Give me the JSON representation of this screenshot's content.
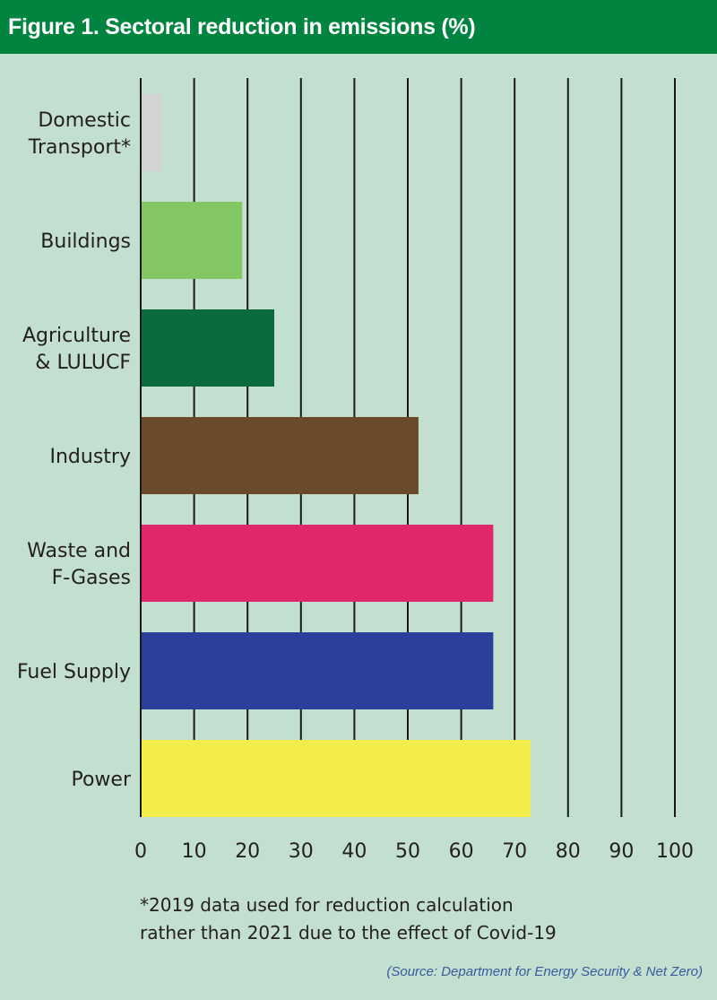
{
  "title": "Figure 1. Sectoral reduction in emissions (%)",
  "chart_data": {
    "type": "bar",
    "orientation": "horizontal",
    "title": "Figure 1. Sectoral reduction in emissions (%)",
    "xlabel": "",
    "ylabel": "",
    "xlim": [
      0,
      100
    ],
    "xticks": [
      0,
      10,
      20,
      30,
      40,
      50,
      60,
      70,
      80,
      90,
      100
    ],
    "grid": "vertical",
    "categories": [
      {
        "label": [
          "Domestic",
          "Transport*"
        ],
        "value": 4,
        "color": "#d3d3d3"
      },
      {
        "label": [
          "Buildings"
        ],
        "value": 19,
        "color": "#83c763"
      },
      {
        "label": [
          "Agriculture",
          "& LULUCF"
        ],
        "value": 25,
        "color": "#0c6b3c"
      },
      {
        "label": [
          "Industry"
        ],
        "value": 52,
        "color": "#6b4a2b"
      },
      {
        "label": [
          "Waste and",
          "F-Gases"
        ],
        "value": 66,
        "color": "#e0276a"
      },
      {
        "label": [
          "Fuel Supply"
        ],
        "value": 66,
        "color": "#2b3f9b"
      },
      {
        "label": [
          "Power"
        ],
        "value": 73,
        "color": "#f3ec4b"
      }
    ]
  },
  "footnote": [
    "*2019 data used for reduction calculation",
    "rather than 2021 due to the effect of Covid-19"
  ],
  "source": "(Source: Department for Energy Security & Net Zero)"
}
